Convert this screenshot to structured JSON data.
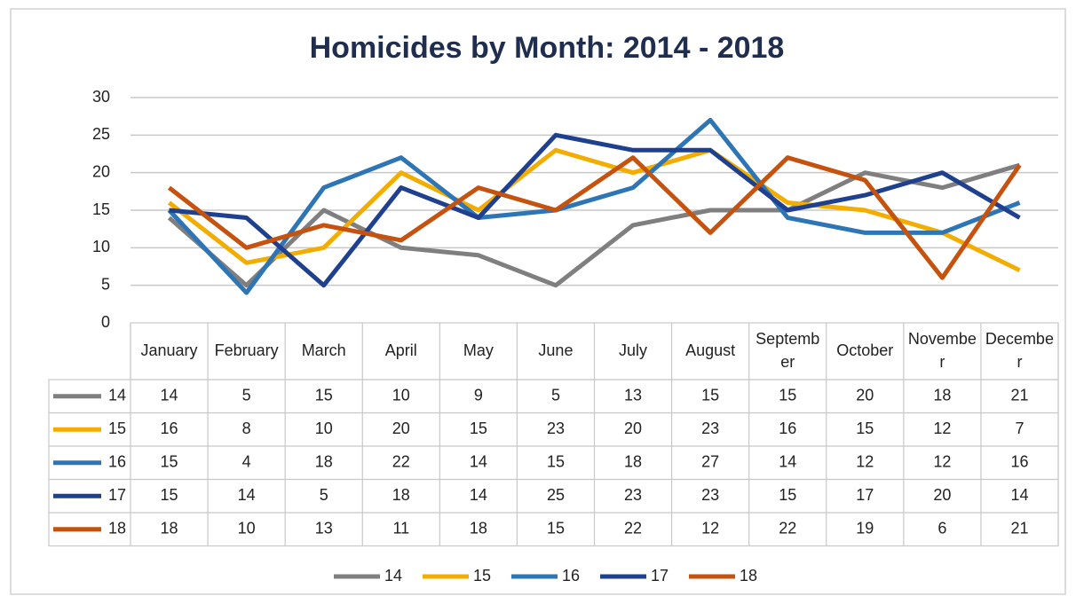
{
  "chart_data": {
    "type": "line",
    "title": "Homicides by Month: 2014 - 2018",
    "categories": [
      "January",
      "February",
      "March",
      "April",
      "May",
      "June",
      "July",
      "August",
      "September",
      "October",
      "November",
      "December"
    ],
    "series": [
      {
        "name": "14",
        "color": "#7f7f7f",
        "values": [
          14,
          5,
          15,
          10,
          9,
          5,
          13,
          15,
          15,
          20,
          18,
          21
        ]
      },
      {
        "name": "15",
        "color": "#f2ad00",
        "values": [
          16,
          8,
          10,
          20,
          15,
          23,
          20,
          23,
          16,
          15,
          12,
          7
        ]
      },
      {
        "name": "16",
        "color": "#2e75b6",
        "values": [
          15,
          4,
          18,
          22,
          14,
          15,
          18,
          27,
          14,
          12,
          12,
          16
        ]
      },
      {
        "name": "17",
        "color": "#1f3f8f",
        "values": [
          15,
          14,
          5,
          18,
          14,
          25,
          23,
          23,
          15,
          17,
          20,
          14
        ]
      },
      {
        "name": "18",
        "color": "#c5530f",
        "values": [
          18,
          10,
          13,
          11,
          18,
          15,
          22,
          12,
          22,
          19,
          6,
          21
        ]
      }
    ],
    "ylim": [
      0,
      30
    ],
    "yticks": [
      0,
      5,
      10,
      15,
      20,
      25,
      30
    ],
    "grid": true,
    "legend": "bottom",
    "data_table": true
  }
}
